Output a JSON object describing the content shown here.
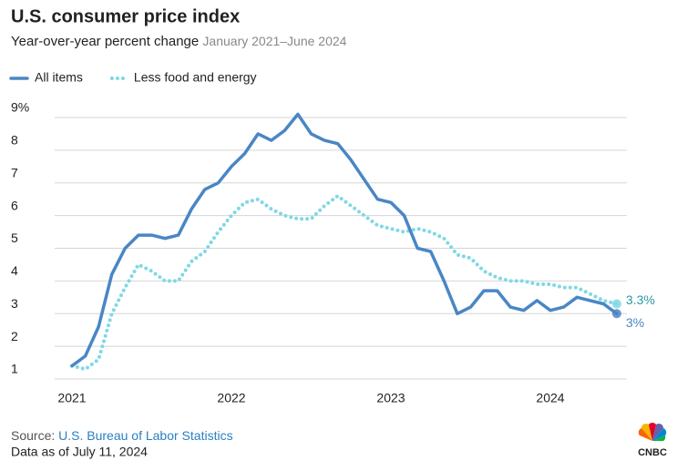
{
  "chart_data": {
    "type": "line",
    "title": "U.S. consumer price index",
    "subtitle": "Year-over-year percent change",
    "date_range": "January 2021–June 2024",
    "categories": [
      "2021",
      null,
      null,
      null,
      null,
      null,
      null,
      null,
      null,
      null,
      null,
      null,
      "2022",
      null,
      null,
      null,
      null,
      null,
      null,
      null,
      null,
      null,
      null,
      null,
      "2023",
      null,
      null,
      null,
      null,
      null,
      null,
      null,
      null,
      null,
      null,
      null,
      "2024",
      null,
      null,
      null,
      null,
      null
    ],
    "series": [
      {
        "name": "All items",
        "color": "#4a86c5",
        "style": "solid",
        "values": [
          1.4,
          1.7,
          2.6,
          4.2,
          5.0,
          5.4,
          5.4,
          5.3,
          5.4,
          6.2,
          6.8,
          7.0,
          7.5,
          7.9,
          8.5,
          8.3,
          8.6,
          9.1,
          8.5,
          8.3,
          8.2,
          7.7,
          7.1,
          6.5,
          6.4,
          6.0,
          5.0,
          4.9,
          4.0,
          3.0,
          3.2,
          3.7,
          3.7,
          3.2,
          3.1,
          3.4,
          3.1,
          3.2,
          3.5,
          3.4,
          3.3,
          3.0
        ],
        "value_labels": [
          null,
          null,
          null,
          null,
          null,
          null,
          null,
          null,
          null,
          null,
          null,
          null,
          null,
          null,
          null,
          null,
          null,
          null,
          null,
          null,
          null,
          null,
          null,
          null,
          null,
          null,
          null,
          null,
          null,
          null,
          null,
          null,
          null,
          null,
          null,
          null,
          null,
          null,
          null,
          null,
          null,
          "3%"
        ]
      },
      {
        "name": "Less food and energy",
        "color": "#7fd8e4",
        "style": "dotted",
        "values": [
          1.4,
          1.3,
          1.6,
          3.0,
          3.8,
          4.5,
          4.3,
          4.0,
          4.0,
          4.6,
          4.9,
          5.5,
          6.0,
          6.4,
          6.5,
          6.2,
          6.0,
          5.9,
          5.9,
          6.3,
          6.6,
          6.3,
          6.0,
          5.7,
          5.6,
          5.5,
          5.6,
          5.5,
          5.3,
          4.8,
          4.7,
          4.3,
          4.1,
          4.0,
          4.0,
          3.9,
          3.9,
          3.8,
          3.8,
          3.6,
          3.4,
          3.3
        ],
        "value_labels": [
          null,
          null,
          null,
          null,
          null,
          null,
          null,
          null,
          null,
          null,
          null,
          null,
          null,
          null,
          null,
          null,
          null,
          null,
          null,
          null,
          null,
          null,
          null,
          null,
          null,
          null,
          null,
          null,
          null,
          null,
          null,
          null,
          null,
          null,
          null,
          null,
          null,
          null,
          null,
          null,
          null,
          "3.3%"
        ]
      }
    ],
    "ylim": [
      1,
      9
    ],
    "yticks": [
      1,
      2,
      3,
      4,
      5,
      6,
      7,
      8,
      {
        "value": 9,
        "label": "9%"
      }
    ],
    "grid": true
  },
  "source_prefix": "Source:",
  "source": "U.S. Bureau of Labor Statistics",
  "note": "Data as of July 11, 2024",
  "logo": "CNBC"
}
